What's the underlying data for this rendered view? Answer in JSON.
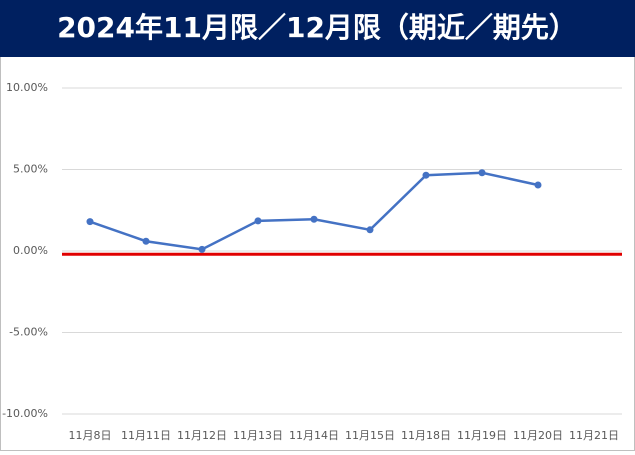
{
  "chart_data": {
    "type": "line",
    "title": "2024年11月限／12月限（期近／期先）",
    "categories": [
      "11月8日",
      "11月11日",
      "11月12日",
      "11月13日",
      "11月14日",
      "11月15日",
      "11月18日",
      "11月19日",
      "11月20日",
      "11月21日"
    ],
    "series": [
      {
        "color": "#4472c4",
        "values": [
          1.8,
          0.6,
          0.1,
          1.85,
          1.95,
          1.3,
          4.65,
          4.8,
          4.05,
          null
        ]
      }
    ],
    "reference_line": {
      "value": -0.2,
      "color": "#e00000"
    },
    "ylim": [
      -10,
      10
    ],
    "yticks": [
      {
        "value": -10,
        "label": "-10.00%"
      },
      {
        "value": -5,
        "label": "-5.00%"
      },
      {
        "value": 0,
        "label": "0.00%"
      },
      {
        "value": 5,
        "label": "5.00%"
      },
      {
        "value": 10,
        "label": "10.00%"
      }
    ],
    "grid": true,
    "title_background": "#002060"
  }
}
